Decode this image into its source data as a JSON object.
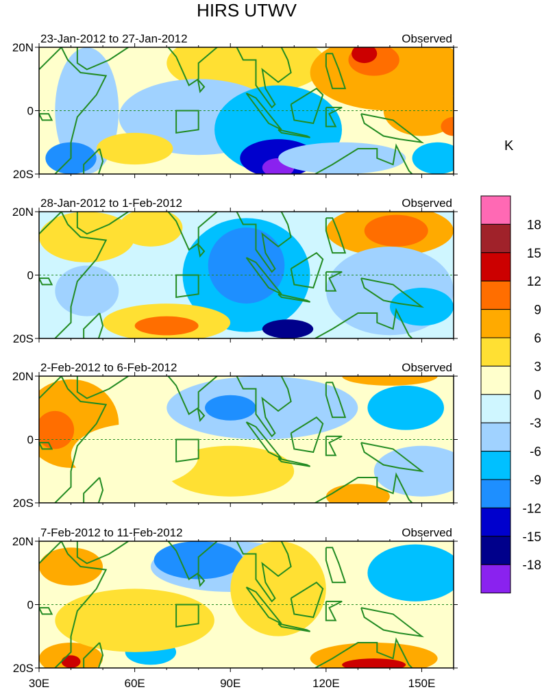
{
  "title": "HIRS UTWV",
  "units_label": "K",
  "panels": [
    {
      "date_range": "23-Jan-2012 to 27-Jan-2012",
      "kind": "Observed"
    },
    {
      "date_range": "28-Jan-2012 to 1-Feb-2012",
      "kind": "Observed"
    },
    {
      "date_range": "2-Feb-2012 to 6-Feb-2012",
      "kind": "Observed"
    },
    {
      "date_range": "7-Feb-2012 to 11-Feb-2012",
      "kind": "Observed"
    }
  ],
  "lat_ticks": [
    "20N",
    "0",
    "20S"
  ],
  "lon_ticks": [
    "30E",
    "60E",
    "90E",
    "120E",
    "150E"
  ],
  "colorbar": {
    "labels": [
      "18",
      "15",
      "12",
      "9",
      "6",
      "3",
      "0",
      "-3",
      "-6",
      "-9",
      "-12",
      "-15",
      "-18"
    ],
    "colors": [
      "#ff69b4",
      "#a0222a",
      "#cc0000",
      "#ff6e00",
      "#ffaa00",
      "#ffe033",
      "#ffffcc",
      "#cff6ff",
      "#a0d2ff",
      "#00c0ff",
      "#1e8fff",
      "#0000cd",
      "#00008b",
      "#8a22ef"
    ]
  },
  "coast_color": "#228b22"
}
